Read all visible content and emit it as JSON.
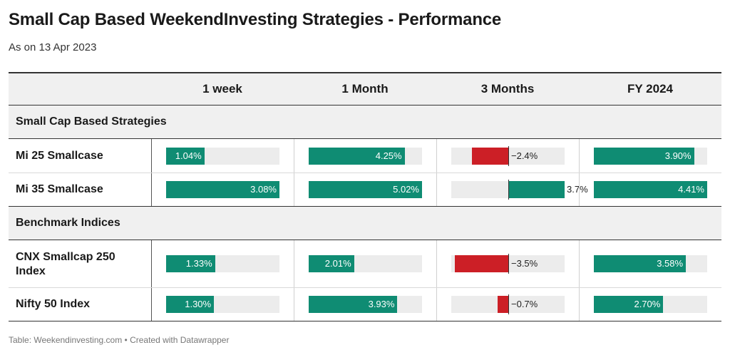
{
  "title": "Small Cap Based WeekendInvesting Strategies - Performance",
  "subtitle": "As on 13 Apr 2023",
  "footer": "Table: Weekendinvesting.com • Created with Datawrapper",
  "colors": {
    "positive": "#0f8c73",
    "negative": "#cc1f26",
    "track": "#ececec"
  },
  "chart_data": {
    "type": "table",
    "columns": [
      "1 week",
      "1 Month",
      "3 Months",
      "FY 2024"
    ],
    "groups": [
      {
        "label": "Small Cap Based Strategies",
        "rows": [
          {
            "name": "Mi 25 Smallcase",
            "values": [
              1.04,
              4.25,
              -2.4,
              3.9
            ],
            "labels": [
              "1.04%",
              "4.25%",
              "−2.4%",
              "3.90%"
            ]
          },
          {
            "name": "Mi 35 Smallcase",
            "values": [
              3.08,
              5.02,
              3.7,
              4.41
            ],
            "labels": [
              "3.08%",
              "5.02%",
              "3.7%",
              "4.41%"
            ]
          }
        ]
      },
      {
        "label": "Benchmark Indices",
        "rows": [
          {
            "name": "CNX Smallcap 250 Index",
            "values": [
              1.33,
              2.01,
              -3.5,
              3.58
            ],
            "labels": [
              "1.33%",
              "2.01%",
              "−3.5%",
              "3.58%"
            ]
          },
          {
            "name": "Nifty 50 Index",
            "values": [
              1.3,
              3.93,
              -0.7,
              2.7
            ],
            "labels": [
              "1.30%",
              "3.93%",
              "−0.7%",
              "2.70%"
            ]
          }
        ]
      }
    ],
    "column_max": [
      3.08,
      5.02,
      3.7,
      4.41
    ],
    "column_diverging": [
      false,
      false,
      true,
      false
    ]
  }
}
